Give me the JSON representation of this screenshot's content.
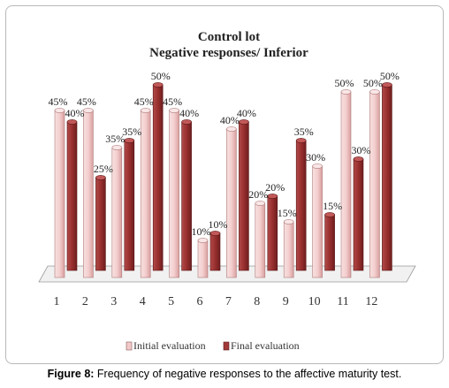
{
  "chart_data": {
    "type": "bar",
    "title": "Control lot",
    "subtitle": "Negative responses/ Inferior",
    "categories": [
      "1",
      "2",
      "3",
      "4",
      "5",
      "6",
      "7",
      "8",
      "9",
      "10",
      "11",
      "12"
    ],
    "series": [
      {
        "name": "Initial evaluation",
        "color": "#f2c9c9",
        "values": [
          45,
          45,
          35,
          45,
          45,
          10,
          40,
          20,
          15,
          30,
          50,
          50
        ]
      },
      {
        "name": "Final evaluation",
        "color": "#a33a3a",
        "values": [
          40,
          25,
          35,
          50,
          40,
          10,
          40,
          20,
          35,
          15,
          30,
          50
        ]
      }
    ],
    "ylim": [
      0,
      60
    ],
    "value_suffix": "%",
    "grid": false,
    "legend_position": "bottom"
  },
  "caption": {
    "label": "Figure 8:",
    "text": " Frequency of negative responses to the affective maturity test."
  }
}
